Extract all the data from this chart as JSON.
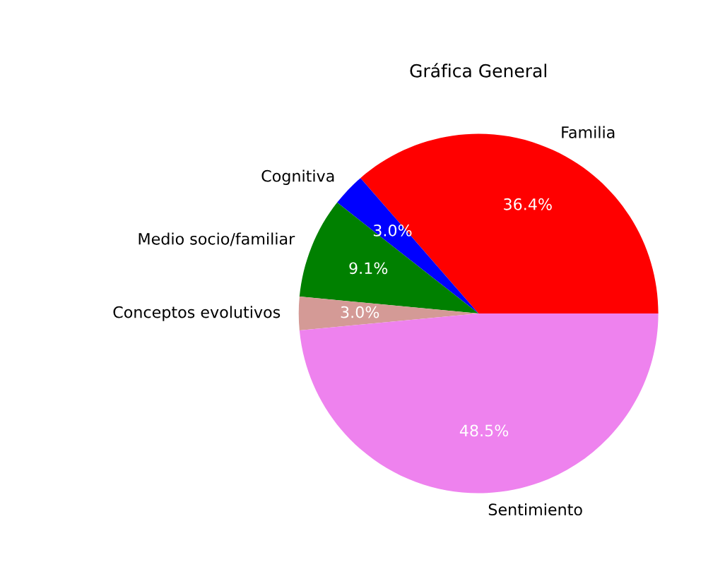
{
  "chart_data": {
    "type": "pie",
    "title": "Gráfica General",
    "categories": [
      "Familia",
      "Cognitiva",
      "Medio socio/familiar",
      "Conceptos evolutivos",
      "Sentimiento"
    ],
    "values": [
      36.4,
      3.0,
      9.1,
      3.0,
      48.5
    ],
    "colors": [
      "#ff0000",
      "#0000ff",
      "#008000",
      "#d49a96",
      "#ee82ee"
    ],
    "value_labels": [
      "36.4%",
      "3.0%",
      "9.1%",
      "3.0%",
      "48.5%"
    ]
  }
}
